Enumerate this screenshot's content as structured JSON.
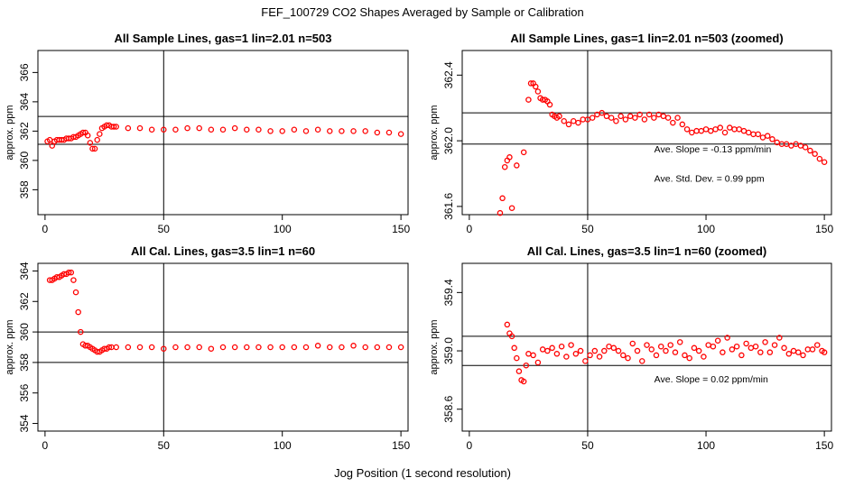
{
  "figure": {
    "title": "FEF_100729  CO2 Shapes Averaged by Sample or Calibration",
    "xlabel": "Jog Position (1 second resolution)"
  },
  "chart_data": [
    {
      "type": "scatter",
      "title": "All Sample Lines, gas=1 lin=2.01 n=503",
      "xlabel": "",
      "ylabel": "approx. ppm",
      "xlim": [
        -3,
        153
      ],
      "ylim": [
        356.3,
        367.5
      ],
      "xticks": [
        0,
        50,
        100,
        150
      ],
      "yticks": [
        358,
        360,
        362,
        364,
        366
      ],
      "hlines": [
        363.0,
        361.1
      ],
      "vline": 50,
      "marker_color": "#ff0000",
      "annotations": [],
      "series": [
        {
          "x": [
            1,
            2,
            3,
            4,
            5,
            6,
            7,
            8,
            9,
            10,
            11,
            12,
            13,
            14,
            15,
            16,
            17,
            18,
            19,
            20,
            21,
            22,
            23,
            24,
            25,
            26,
            27,
            28,
            29,
            30,
            35,
            40,
            45,
            50,
            55,
            60,
            65,
            70,
            75,
            80,
            85,
            90,
            95,
            100,
            105,
            110,
            115,
            120,
            125,
            130,
            135,
            140,
            145,
            150
          ],
          "y": [
            361.3,
            361.4,
            361.0,
            361.3,
            361.4,
            361.4,
            361.4,
            361.4,
            361.5,
            361.5,
            361.5,
            361.6,
            361.6,
            361.7,
            361.8,
            361.9,
            361.9,
            361.7,
            361.2,
            360.8,
            360.8,
            361.4,
            361.8,
            362.2,
            362.3,
            362.4,
            362.4,
            362.3,
            362.3,
            362.3,
            362.2,
            362.2,
            362.1,
            362.1,
            362.1,
            362.2,
            362.2,
            362.1,
            362.1,
            362.2,
            362.1,
            362.1,
            362.0,
            362.0,
            362.1,
            362.0,
            362.1,
            362.0,
            362.0,
            362.0,
            362.0,
            361.9,
            361.9,
            361.8
          ]
        }
      ]
    },
    {
      "type": "scatter",
      "title": "All Sample Lines, gas=1 lin=2.01 n=503 (zoomed)",
      "xlabel": "",
      "ylabel": "approx. ppm",
      "xlim": [
        -3,
        153
      ],
      "ylim": [
        361.55,
        362.55
      ],
      "xticks": [
        0,
        50,
        100,
        150
      ],
      "yticks": [
        361.6,
        362.0,
        362.4
      ],
      "hlines": [
        362.17,
        361.98
      ],
      "vline": 50,
      "marker_color": "#ff0000",
      "annotations": [
        "Ave. Slope =  -0.13  ppm/min",
        "Ave. Std. Dev. =  0.99  ppm"
      ],
      "series": [
        {
          "x": [
            13,
            14,
            15,
            16,
            17,
            18,
            20,
            23,
            25,
            26,
            27,
            28,
            29,
            30,
            31,
            32,
            33,
            34,
            35,
            36,
            37,
            38,
            40,
            42,
            44,
            46,
            48,
            50,
            52,
            54,
            56,
            58,
            60,
            62,
            64,
            66,
            68,
            70,
            72,
            74,
            76,
            78,
            80,
            82,
            84,
            86,
            88,
            90,
            92,
            94,
            96,
            98,
            100,
            102,
            104,
            106,
            108,
            110,
            112,
            114,
            116,
            118,
            120,
            122,
            124,
            126,
            128,
            130,
            132,
            134,
            136,
            138,
            140,
            142,
            144,
            146,
            148,
            150
          ],
          "y": [
            361.56,
            361.65,
            361.84,
            361.88,
            361.9,
            361.59,
            361.85,
            361.93,
            362.25,
            362.35,
            362.35,
            362.33,
            362.3,
            362.26,
            362.25,
            362.25,
            362.24,
            362.22,
            362.16,
            362.15,
            362.14,
            362.15,
            362.12,
            362.1,
            362.12,
            362.11,
            362.13,
            362.13,
            362.14,
            362.16,
            362.17,
            362.15,
            362.14,
            362.12,
            362.15,
            362.13,
            362.15,
            362.14,
            362.16,
            362.13,
            362.16,
            362.14,
            362.16,
            362.15,
            362.14,
            362.11,
            362.14,
            362.1,
            362.07,
            362.05,
            362.06,
            362.06,
            362.07,
            362.06,
            362.07,
            362.08,
            362.05,
            362.08,
            362.07,
            362.07,
            362.06,
            362.05,
            362.04,
            362.04,
            362.02,
            362.03,
            362.01,
            361.99,
            361.98,
            361.98,
            361.97,
            361.98,
            361.97,
            361.96,
            361.94,
            361.92,
            361.89,
            361.87
          ]
        }
      ]
    },
    {
      "type": "scatter",
      "title": "All Cal. Lines, gas=3.5 lin=1 n=60",
      "xlabel": "",
      "ylabel": "approx. ppm",
      "xlim": [
        -3,
        153
      ],
      "ylim": [
        353.5,
        364.5
      ],
      "xticks": [
        0,
        50,
        100,
        150
      ],
      "yticks": [
        354,
        356,
        358,
        360,
        362,
        364
      ],
      "hlines": [
        360.0,
        358.0
      ],
      "vline": 50,
      "marker_color": "#ff0000",
      "annotations": [],
      "series": [
        {
          "x": [
            2,
            3,
            4,
            5,
            6,
            7,
            8,
            9,
            10,
            11,
            12,
            13,
            14,
            15,
            16,
            17,
            18,
            19,
            20,
            21,
            22,
            23,
            24,
            25,
            26,
            27,
            28,
            30,
            35,
            40,
            45,
            50,
            55,
            60,
            65,
            70,
            75,
            80,
            85,
            90,
            95,
            100,
            105,
            110,
            115,
            120,
            125,
            130,
            135,
            140,
            145,
            150
          ],
          "y": [
            363.4,
            363.4,
            363.5,
            363.6,
            363.6,
            363.7,
            363.8,
            363.8,
            363.9,
            363.9,
            363.4,
            362.6,
            361.3,
            360.0,
            359.2,
            359.1,
            359.1,
            359.0,
            358.9,
            358.8,
            358.7,
            358.7,
            358.8,
            358.9,
            358.9,
            359.0,
            359.0,
            359.0,
            359.0,
            359.0,
            359.0,
            358.9,
            359.0,
            359.0,
            359.0,
            358.9,
            359.0,
            359.0,
            359.0,
            359.0,
            359.0,
            359.0,
            359.0,
            359.0,
            359.1,
            359.0,
            359.0,
            359.1,
            359.0,
            359.0,
            359.0,
            359.0
          ]
        }
      ]
    },
    {
      "type": "scatter",
      "title": "All Cal. Lines, gas=3.5 lin=1 n=60 (zoomed)",
      "xlabel": "",
      "ylabel": "approx. ppm",
      "xlim": [
        -3,
        153
      ],
      "ylim": [
        358.45,
        359.6
      ],
      "xticks": [
        0,
        50,
        100,
        150
      ],
      "yticks": [
        358.6,
        359.0,
        359.4
      ],
      "hlines": [
        359.1,
        358.9
      ],
      "vline": 50,
      "marker_color": "#ff0000",
      "annotations": [
        "Ave. Slope =  0.02  ppm/min"
      ],
      "series": [
        {
          "x": [
            16,
            17,
            18,
            19,
            20,
            21,
            22,
            23,
            24,
            25,
            27,
            29,
            31,
            33,
            35,
            37,
            39,
            41,
            43,
            45,
            47,
            49,
            51,
            53,
            55,
            57,
            59,
            61,
            63,
            65,
            67,
            69,
            71,
            73,
            75,
            77,
            79,
            81,
            83,
            85,
            87,
            89,
            91,
            93,
            95,
            97,
            99,
            101,
            103,
            105,
            107,
            109,
            111,
            113,
            115,
            117,
            119,
            121,
            123,
            125,
            127,
            129,
            131,
            133,
            135,
            137,
            139,
            141,
            143,
            145,
            147,
            149,
            150
          ],
          "y": [
            359.18,
            359.12,
            359.1,
            359.02,
            358.95,
            358.86,
            358.8,
            358.79,
            358.9,
            358.98,
            358.97,
            358.92,
            359.01,
            359.0,
            359.02,
            358.98,
            359.03,
            358.96,
            359.04,
            358.98,
            359.0,
            358.93,
            358.97,
            359.0,
            358.96,
            359.0,
            359.03,
            359.02,
            359.0,
            358.97,
            358.95,
            359.05,
            359.0,
            358.93,
            359.04,
            359.01,
            358.97,
            359.03,
            359.0,
            359.04,
            358.99,
            359.06,
            358.97,
            358.95,
            359.02,
            359.0,
            358.96,
            359.04,
            359.03,
            359.07,
            358.99,
            359.09,
            359.01,
            359.03,
            358.97,
            359.05,
            359.02,
            359.03,
            358.99,
            359.06,
            358.99,
            359.04,
            359.09,
            359.02,
            358.98,
            359.0,
            358.99,
            358.97,
            359.01,
            359.01,
            359.04,
            359.0,
            358.99
          ]
        }
      ]
    }
  ]
}
